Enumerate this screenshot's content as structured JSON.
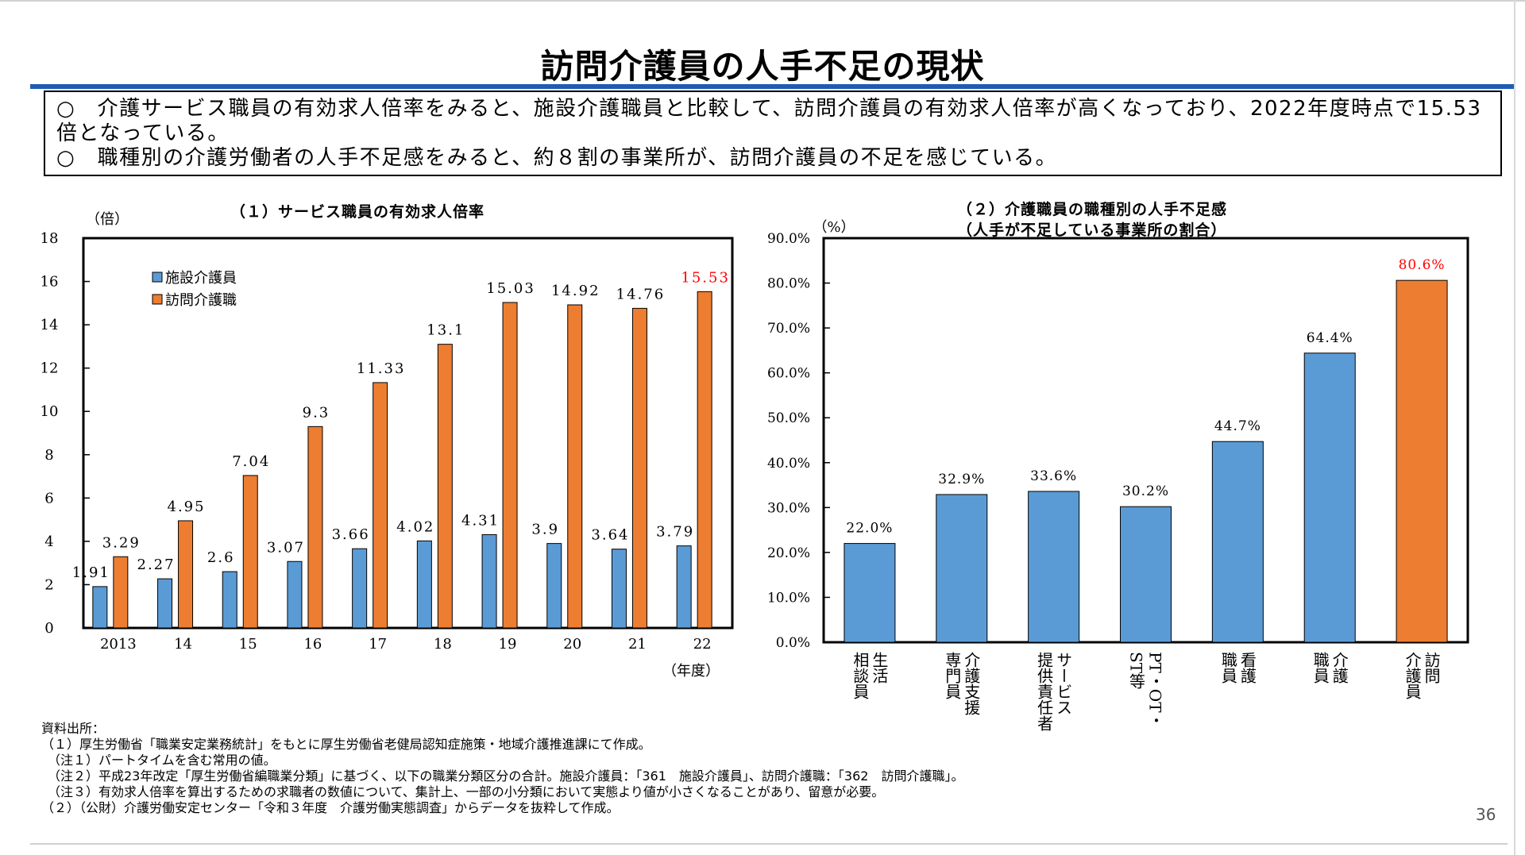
{
  "page": {
    "title": "訪問介護員の人手不足の現状",
    "summary": [
      "○　介護サービス職員の有効求人倍率をみると、施設介護職員と比較して、訪問介護員の有効求人倍率が高くなっており、2022年度時点で15.53倍となっている。",
      "○　職種別の介護労働者の人手不足感をみると、約８割の事業所が、訪問介護員の不足を感じている。"
    ],
    "notes": [
      "資料出所：",
      "（１）厚生労働省「職業安定業務統計」をもとに厚生労働省老健局認知症施策・地域介護推進課にて作成。",
      "　（注１）パートタイムを含む常用の値。",
      "　（注２）平成23年改定「厚生労働省編職業分類」に基づく、以下の職業分類区分の合計。施設介護員：「361　施設介護員」、訪問介護職：「362　訪問介護職」。",
      "　（注３）有効求人倍率を算出するための求職者の数値について、集計上、一部の小分類において実態より値が小さくなることがあり、留意が必要。",
      "（２）（公財）介護労働安定センター「令和３年度　介護労働実態調査」からデータを抜粋して作成。"
    ],
    "page_number": "36"
  },
  "chart_data": [
    {
      "type": "bar",
      "title": "（１）サービス職員の有効求人倍率",
      "ylabel": "（倍）",
      "xlabel": "（年度）",
      "ylim": [
        0,
        18
      ],
      "yticks": [
        "0",
        "2",
        "4",
        "6",
        "8",
        "10",
        "12",
        "14",
        "16",
        "18"
      ],
      "categories": [
        "2013",
        "14",
        "15",
        "16",
        "17",
        "18",
        "19",
        "20",
        "21",
        "22"
      ],
      "series": [
        {
          "name": "施設介護員",
          "color": "#5b9bd5",
          "values": [
            1.91,
            2.27,
            2.6,
            3.07,
            3.66,
            4.02,
            4.31,
            3.9,
            3.64,
            3.79
          ],
          "labels": [
            "1.91",
            "2.27",
            "2.6",
            "3.07",
            "3.66",
            "4.02",
            "4.31",
            "3.9",
            "3.64",
            "3.79"
          ]
        },
        {
          "name": "訪問介護職",
          "color": "#ed7d31",
          "values": [
            3.29,
            4.95,
            7.04,
            9.3,
            11.33,
            13.1,
            15.03,
            14.92,
            14.76,
            15.53
          ],
          "labels": [
            "3.29",
            "4.95",
            "7.04",
            "9.3",
            "11.33",
            "13.1",
            "15.03",
            "14.92",
            "14.76",
            "15.53"
          ]
        }
      ],
      "highlight_label_color": "#ff0000",
      "legend": "top-left",
      "grid": false
    },
    {
      "type": "bar",
      "title": "（２）介護職員の職種別の人手不足感",
      "subtitle": "（人手が不足している事業所の割合）",
      "ylabel": "（%）",
      "ylim": [
        0,
        90
      ],
      "yticks": [
        "0.0%",
        "10.0%",
        "20.0%",
        "30.0%",
        "40.0%",
        "50.0%",
        "60.0%",
        "70.0%",
        "80.0%",
        "90.0%"
      ],
      "categories": [
        [
          "生活",
          "相談員"
        ],
        [
          "介護支援",
          "専門員"
        ],
        [
          "サービス",
          "提供責任者"
        ],
        [
          "PT・OT・",
          "ST等"
        ],
        [
          "看護",
          "職員"
        ],
        [
          "介護",
          "職員"
        ],
        [
          "訪問",
          "介護員"
        ]
      ],
      "values": [
        22.0,
        32.9,
        33.6,
        30.2,
        44.7,
        64.4,
        80.6
      ],
      "labels": [
        "22.0%",
        "32.9%",
        "33.6%",
        "30.2%",
        "44.7%",
        "64.4%",
        "80.6%"
      ],
      "colors": [
        "#5b9bd5",
        "#5b9bd5",
        "#5b9bd5",
        "#5b9bd5",
        "#5b9bd5",
        "#5b9bd5",
        "#ed7d31"
      ],
      "highlight_label_color": "#ff0000",
      "grid": false
    }
  ]
}
